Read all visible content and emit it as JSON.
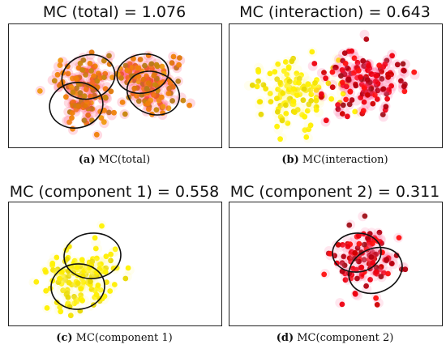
{
  "panels": [
    {
      "title": "MC (total) = 1.076",
      "caption_letter": "(a)",
      "caption_text": " MC(total)",
      "color": "#f0820a"
    },
    {
      "title": "MC (interaction) = 0.643",
      "caption_letter": "(b)",
      "caption_text": " MC(interaction)",
      "color_left": "#ffee00",
      "color_right": "#ee0010"
    },
    {
      "title": "MC (component 1) = 0.558",
      "caption_letter": "(c)",
      "caption_text": " MC(component 1)",
      "color": "#ffee00"
    },
    {
      "title": "MC (component 2) = 0.311",
      "caption_letter": "(d)",
      "caption_text": " MC(component 2)",
      "color": "#e60010"
    }
  ],
  "chart_data": [
    {
      "type": "scatter",
      "title": "MC (total) = 1.076",
      "ellipses": 4,
      "series": [
        {
          "values": []
        }
      ]
    },
    {
      "type": "scatter",
      "title": "MC (interaction) = 0.643",
      "ellipses": 0,
      "series": [
        {
          "values": []
        },
        {
          "values": []
        }
      ]
    },
    {
      "type": "scatter",
      "title": "MC (component 1) = 0.558",
      "ellipses": 2,
      "series": [
        {
          "values": []
        }
      ]
    },
    {
      "type": "scatter",
      "title": "MC (component 2) = 0.311",
      "ellipses": 2,
      "series": [
        {
          "values": []
        }
      ]
    }
  ]
}
